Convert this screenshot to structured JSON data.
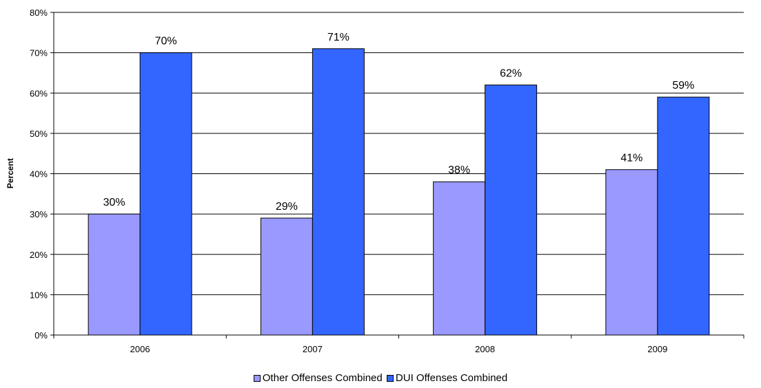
{
  "chart_data": {
    "type": "bar",
    "title": "",
    "xlabel": "",
    "ylabel": "Percent",
    "ylim": [
      0,
      80
    ],
    "yticks": [
      0,
      10,
      20,
      30,
      40,
      50,
      60,
      70,
      80
    ],
    "ytick_labels": [
      "0%",
      "10%",
      "20%",
      "30%",
      "40%",
      "50%",
      "60%",
      "70%",
      "80%"
    ],
    "categories": [
      "2006",
      "2007",
      "2008",
      "2009"
    ],
    "series": [
      {
        "name": "Other Offenses Combined",
        "color": "#9999ff",
        "values": [
          30,
          29,
          38,
          41
        ],
        "labels": [
          "30%",
          "29%",
          "38%",
          "41%"
        ]
      },
      {
        "name": "DUI Offenses Combined",
        "color": "#3366ff",
        "values": [
          70,
          71,
          62,
          59
        ],
        "labels": [
          "70%",
          "71%",
          "62%",
          "59%"
        ]
      }
    ],
    "grid": true,
    "legend_position": "bottom"
  }
}
